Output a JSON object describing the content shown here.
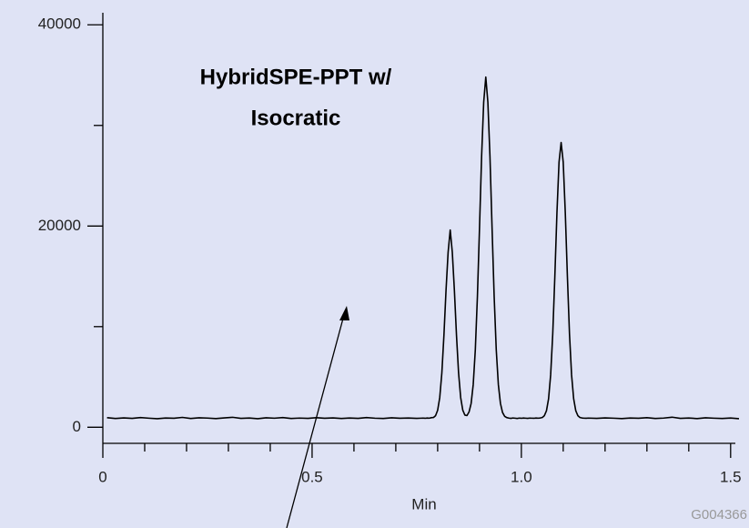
{
  "chart_data": {
    "type": "line",
    "title_lines": [
      "HybridSPE-PPT w/",
      "Isocratic"
    ],
    "x_label": "Min",
    "code": "G004366",
    "color": "#000000",
    "xlim": [
      0,
      1.52
    ],
    "ylim": [
      -1600,
      41200
    ],
    "xticks": [
      0,
      0.5,
      {
        "value": 1,
        "label": "1.0"
      },
      1.5
    ],
    "xminor_ticks": [
      0.1,
      0.2,
      0.3,
      0.4,
      0.6,
      0.7,
      0.8,
      0.9,
      1.1,
      1.2,
      1.3,
      1.4
    ],
    "yticks": [
      0,
      20000,
      40000
    ],
    "yminor_ticks": [
      10000,
      30000
    ],
    "x": [
      0.01,
      0.03,
      0.05,
      0.07,
      0.09,
      0.11,
      0.13,
      0.15,
      0.17,
      0.19,
      0.21,
      0.23,
      0.25,
      0.27,
      0.29,
      0.31,
      0.33,
      0.35,
      0.37,
      0.39,
      0.41,
      0.43,
      0.45,
      0.47,
      0.49,
      0.51,
      0.53,
      0.55,
      0.57,
      0.59,
      0.61,
      0.63,
      0.65,
      0.67,
      0.69,
      0.71,
      0.73,
      0.75,
      0.76,
      0.765,
      0.77,
      0.775,
      0.78,
      0.785,
      0.79,
      0.795,
      0.8,
      0.805,
      0.81,
      0.815,
      0.82,
      0.825,
      0.83,
      0.835,
      0.84,
      0.845,
      0.85,
      0.855,
      0.86,
      0.865,
      0.87,
      0.875,
      0.88,
      0.885,
      0.89,
      0.895,
      0.9,
      0.905,
      0.91,
      0.915,
      0.92,
      0.925,
      0.93,
      0.935,
      0.94,
      0.945,
      0.95,
      0.955,
      0.96,
      0.965,
      0.97,
      0.975,
      0.98,
      0.985,
      0.99,
      0.995,
      1.0,
      1.005,
      1.01,
      1.015,
      1.02,
      1.025,
      1.03,
      1.035,
      1.04,
      1.045,
      1.05,
      1.055,
      1.06,
      1.065,
      1.07,
      1.075,
      1.08,
      1.085,
      1.09,
      1.095,
      1.1,
      1.105,
      1.11,
      1.115,
      1.12,
      1.125,
      1.13,
      1.135,
      1.14,
      1.145,
      1.15,
      1.155,
      1.16,
      1.18,
      1.2,
      1.22,
      1.24,
      1.26,
      1.28,
      1.3,
      1.32,
      1.34,
      1.36,
      1.38,
      1.4,
      1.42,
      1.44,
      1.46,
      1.48,
      1.5,
      1.52
    ],
    "values": [
      950,
      870,
      930,
      880,
      960,
      900,
      850,
      920,
      890,
      980,
      870,
      940,
      910,
      860,
      930,
      990,
      880,
      920,
      850,
      940,
      900,
      960,
      870,
      910,
      880,
      950,
      890,
      930,
      870,
      920,
      880,
      960,
      900,
      870,
      940,
      890,
      920,
      880,
      900,
      910,
      890,
      920,
      900,
      950,
      970,
      1150,
      1690,
      2950,
      5380,
      9140,
      13600,
      17400,
      19600,
      17400,
      13600,
      9140,
      5380,
      2950,
      1700,
      1210,
      1160,
      1520,
      2370,
      4250,
      7700,
      13000,
      19800,
      26900,
      32300,
      34800,
      32300,
      26900,
      19800,
      13000,
      7700,
      4250,
      2370,
      1470,
      1090,
      960,
      910,
      880,
      920,
      900,
      870,
      910,
      890,
      920,
      900,
      880,
      910,
      900,
      890,
      920,
      900,
      920,
      970,
      1150,
      1640,
      2820,
      5200,
      9280,
      15000,
      21300,
      26350,
      28300,
      26350,
      21300,
      15000,
      9280,
      5200,
      2820,
      1640,
      1150,
      970,
      920,
      900,
      890,
      910,
      880,
      930,
      900,
      860,
      920,
      890,
      950,
      870,
      910,
      1000,
      880,
      920,
      860,
      940,
      900,
      870,
      920,
      850
    ]
  }
}
